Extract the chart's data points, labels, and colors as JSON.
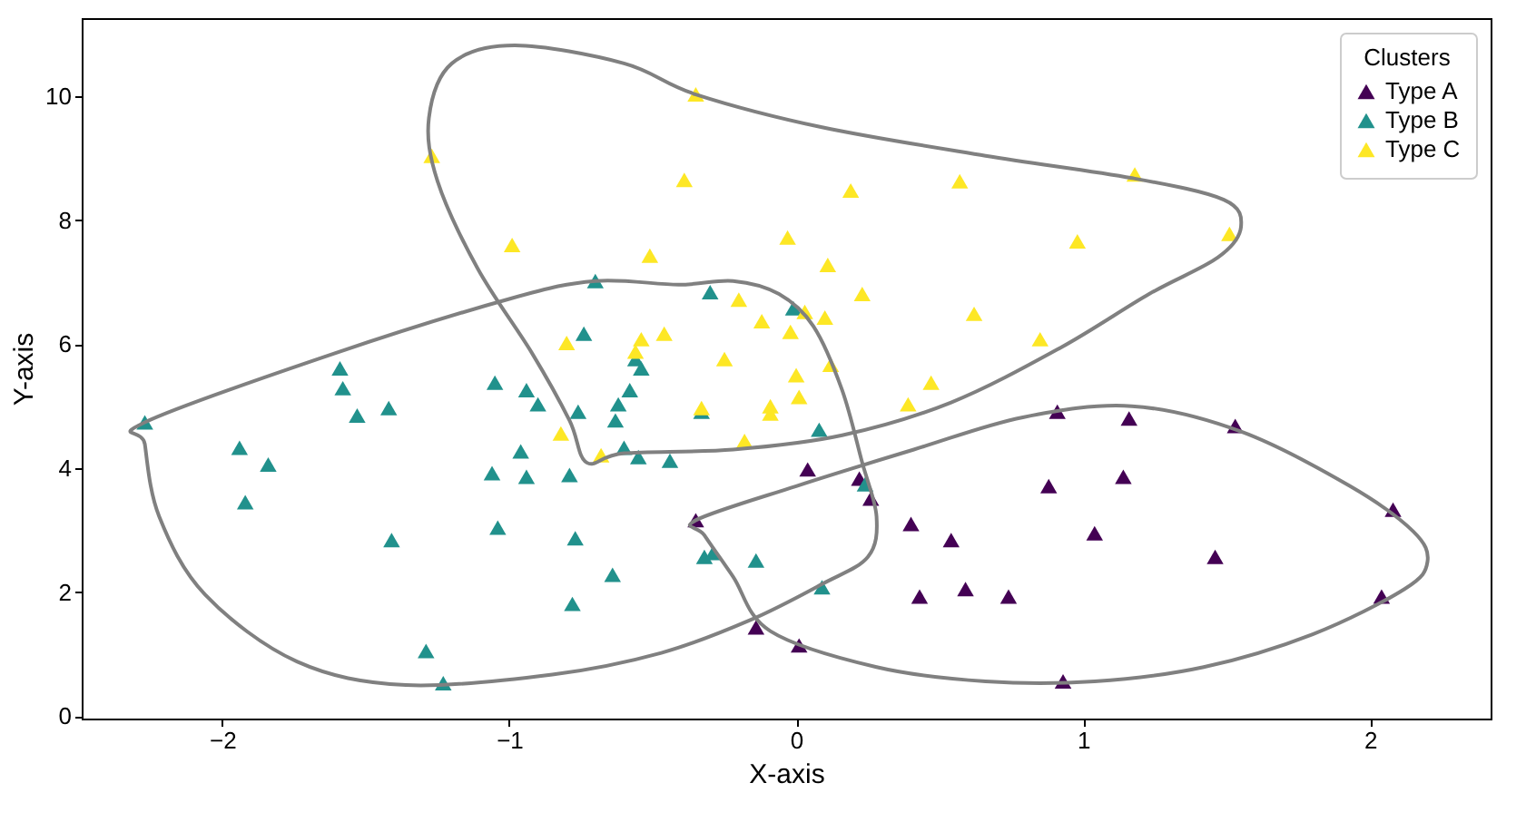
{
  "chart_data": {
    "type": "scatter",
    "xlabel": "X-axis",
    "ylabel": "Y-axis",
    "legend_title": "Clusters",
    "legend": "top right",
    "marker": "triangle",
    "grid": false,
    "xlim": [
      -2.49,
      2.42
    ],
    "ylim": [
      -0.04,
      11.26
    ],
    "xticks": [
      -2,
      -1,
      0,
      1,
      2
    ],
    "yticks": [
      0,
      2,
      4,
      6,
      8,
      10
    ],
    "series": [
      {
        "name": "Type A",
        "color": "#440154",
        "x": [
          0.04,
          0.22,
          0.26,
          -0.35,
          -0.14,
          0.01,
          0.4,
          0.54,
          0.43,
          0.59,
          0.91,
          1.16,
          1.53,
          0.88,
          1.14,
          2.08,
          1.04,
          1.46,
          0.74,
          2.04,
          0.93
        ],
        "values": [
          3.98,
          3.83,
          3.51,
          3.16,
          1.43,
          1.14,
          3.1,
          2.84,
          1.93,
          2.05,
          4.91,
          4.8,
          4.68,
          3.71,
          3.86,
          3.33,
          2.95,
          2.57,
          1.93,
          1.93,
          0.56
        ]
      },
      {
        "name": "Type B",
        "color": "#21918c",
        "x": [
          -2.27,
          -1.59,
          -1.58,
          -1.53,
          -1.42,
          -1.94,
          -1.84,
          -1.92,
          -1.41,
          -1.29,
          -1.23,
          -1.05,
          -0.94,
          -0.9,
          -0.96,
          -1.06,
          -0.94,
          -1.04,
          -0.7,
          -0.3,
          -0.01,
          -0.74,
          -0.56,
          -0.54,
          -0.58,
          -0.62,
          -0.63,
          -0.76,
          -0.79,
          -0.6,
          -0.55,
          -0.44,
          -0.33,
          -0.77,
          -0.64,
          -0.78,
          -0.32,
          -0.29,
          -0.14,
          0.08,
          0.24,
          0.09
        ],
        "values": [
          4.74,
          5.61,
          5.29,
          4.85,
          4.97,
          4.33,
          4.06,
          3.45,
          2.84,
          1.05,
          0.53,
          5.38,
          5.26,
          5.03,
          4.27,
          3.92,
          3.86,
          3.04,
          7.02,
          6.84,
          6.58,
          6.17,
          5.76,
          5.61,
          5.26,
          5.03,
          4.77,
          4.91,
          3.89,
          4.33,
          4.18,
          4.12,
          4.91,
          2.87,
          2.28,
          1.81,
          2.57,
          2.63,
          2.51,
          4.62,
          3.74,
          2.08
        ]
      },
      {
        "name": "Type C",
        "color": "#fde725",
        "x": [
          -0.35,
          -1.27,
          -0.39,
          0.19,
          -0.99,
          -0.51,
          -0.03,
          0.11,
          0.57,
          1.18,
          0.98,
          1.51,
          0.62,
          0.85,
          0.23,
          -0.2,
          -0.12,
          0.03,
          0.1,
          -0.02,
          -0.8,
          -0.54,
          -0.46,
          -0.56,
          -0.25,
          0.0,
          0.12,
          0.01,
          0.47,
          0.39,
          -0.09,
          -0.09,
          -0.33,
          -0.18,
          -0.82,
          -0.68
        ],
        "values": [
          10.03,
          9.04,
          8.65,
          8.48,
          7.6,
          7.43,
          7.72,
          7.28,
          8.63,
          8.74,
          7.66,
          7.78,
          6.49,
          6.08,
          6.81,
          6.72,
          6.37,
          6.52,
          6.43,
          6.2,
          6.02,
          6.08,
          6.17,
          5.88,
          5.76,
          5.5,
          5.67,
          5.15,
          5.38,
          5.03,
          5.0,
          4.88,
          4.97,
          4.44,
          4.56,
          4.21
        ]
      }
    ]
  }
}
